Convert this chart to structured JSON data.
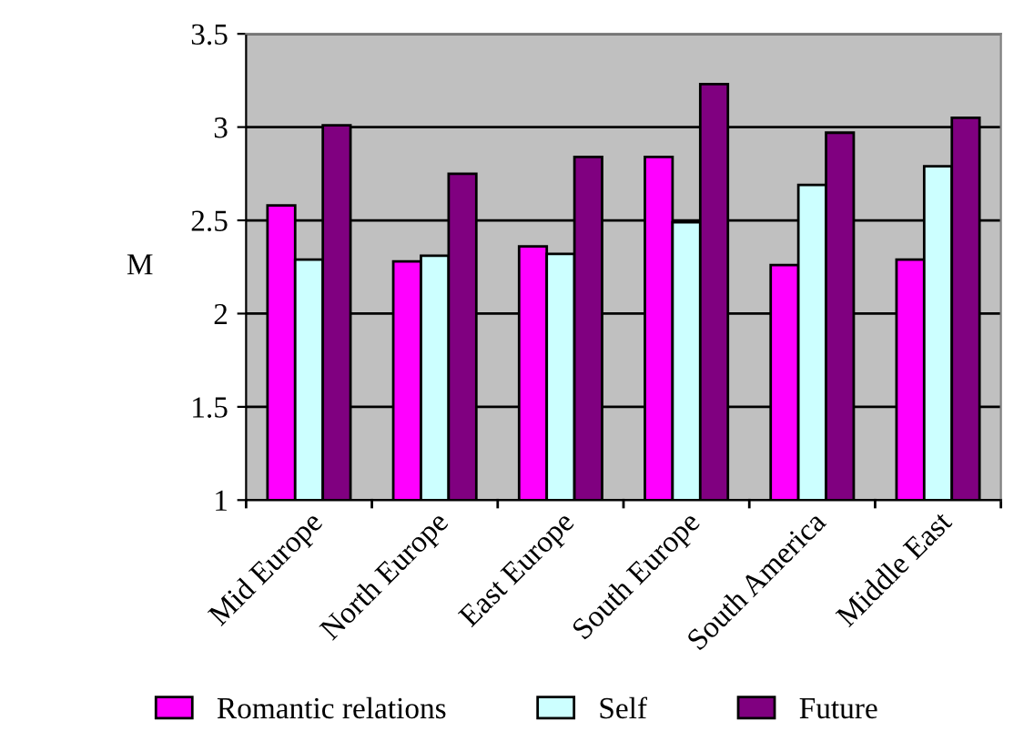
{
  "chart_data": {
    "type": "bar",
    "ylabel": "M",
    "categories": [
      "Mid Europe",
      "North Europe",
      "East Europe",
      "South Europe",
      "South America",
      "Middle East"
    ],
    "series": [
      {
        "name": "Romantic relations",
        "color": "#ff00ff",
        "values": [
          2.58,
          2.28,
          2.36,
          2.84,
          2.26,
          2.29
        ]
      },
      {
        "name": "Self",
        "color": "#ccffff",
        "values": [
          2.29,
          2.31,
          2.32,
          2.49,
          2.69,
          2.79
        ]
      },
      {
        "name": "Future",
        "color": "#800080",
        "values": [
          3.01,
          2.75,
          2.84,
          3.23,
          2.97,
          3.05
        ]
      }
    ],
    "ylim": [
      1,
      3.5
    ],
    "yticks": [
      1,
      1.5,
      2,
      2.5,
      3,
      3.5
    ],
    "grid": "y",
    "legend": "bottom"
  }
}
